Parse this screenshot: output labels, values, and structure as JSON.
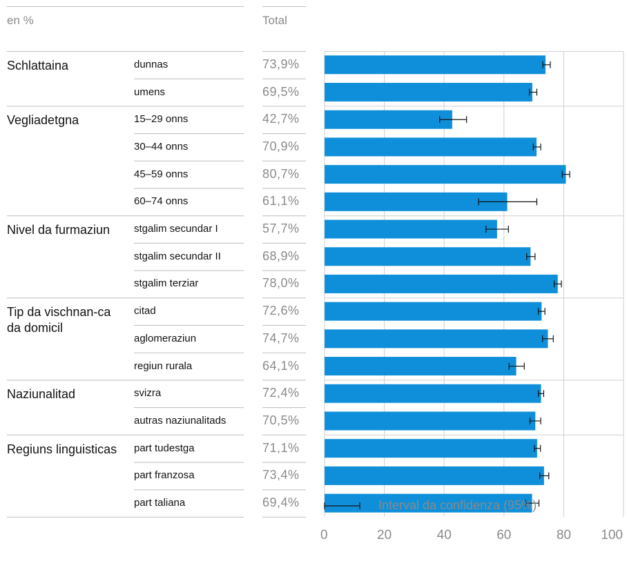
{
  "header": {
    "unit_label": "en %",
    "total_label": "Total"
  },
  "legend": {
    "ci_label": "Interval da confidenza (95%)"
  },
  "colors": {
    "bar": "#0f8fd9",
    "grid": "#cfcfcf",
    "axis_text": "#8a8a8a"
  },
  "chart_data": {
    "type": "bar",
    "orientation": "horizontal",
    "xlim": [
      0,
      100
    ],
    "xticks": [
      "0",
      "20",
      "40",
      "60",
      "80",
      "100"
    ],
    "grid": true,
    "groups": [
      {
        "label": "Schlattaina",
        "rows": [
          {
            "label": "dunnas",
            "value": 73.9,
            "total": "73,9%",
            "ci": [
              73.0,
              75.5
            ]
          },
          {
            "label": "umens",
            "value": 69.5,
            "total": "69,5%",
            "ci": [
              68.5,
              71.0
            ]
          }
        ]
      },
      {
        "label": "Vegliadetgna",
        "rows": [
          {
            "label": "15–29 onns",
            "value": 42.7,
            "total": "42,7%",
            "ci": [
              38.5,
              47.5
            ]
          },
          {
            "label": "30–44 onns",
            "value": 70.9,
            "total": "70,9%",
            "ci": [
              69.8,
              72.3
            ]
          },
          {
            "label": "45–59 onns",
            "value": 80.7,
            "total": "80,7%",
            "ci": [
              79.5,
              82.0
            ]
          },
          {
            "label": "60–74 onns",
            "value": 61.1,
            "total": "61,1%",
            "ci": [
              51.5,
              71.0
            ]
          }
        ]
      },
      {
        "label": "Nivel da furmaziun",
        "rows": [
          {
            "label": "stgalim secundar I",
            "value": 57.7,
            "total": "57,7%",
            "ci": [
              54.0,
              61.5
            ]
          },
          {
            "label": "stgalim secundar II",
            "value": 68.9,
            "total": "68,9%",
            "ci": [
              67.6,
              70.4
            ]
          },
          {
            "label": "stgalim terziar",
            "value": 78.0,
            "total": "78,0%",
            "ci": [
              76.8,
              79.2
            ]
          }
        ]
      },
      {
        "label": "Tip da vischnan-ca da domicil",
        "rows": [
          {
            "label": "citad",
            "value": 72.6,
            "total": "72,6%",
            "ci": [
              71.5,
              73.7
            ]
          },
          {
            "label": "aglomeraziun",
            "value": 74.7,
            "total": "74,7%",
            "ci": [
              72.9,
              76.5
            ]
          },
          {
            "label": "regiun rurala",
            "value": 64.1,
            "total": "64,1%",
            "ci": [
              61.7,
              66.8
            ]
          }
        ]
      },
      {
        "label": "Naziunalitad",
        "rows": [
          {
            "label": "svizra",
            "value": 72.4,
            "total": "72,4%",
            "ci": [
              71.5,
              73.3
            ]
          },
          {
            "label": "autras naziunalitads",
            "value": 70.5,
            "total": "70,5%",
            "ci": [
              68.7,
              72.3
            ]
          }
        ]
      },
      {
        "label": "Regiuns linguisticas",
        "rows": [
          {
            "label": "part tudestga",
            "value": 71.1,
            "total": "71,1%",
            "ci": [
              70.2,
              72.2
            ]
          },
          {
            "label": "part franzosa",
            "value": 73.4,
            "total": "73,4%",
            "ci": [
              72.0,
              75.0
            ]
          },
          {
            "label": "part taliana",
            "value": 69.4,
            "total": "69,4%",
            "ci": [
              67.2,
              71.7
            ]
          }
        ]
      }
    ]
  }
}
